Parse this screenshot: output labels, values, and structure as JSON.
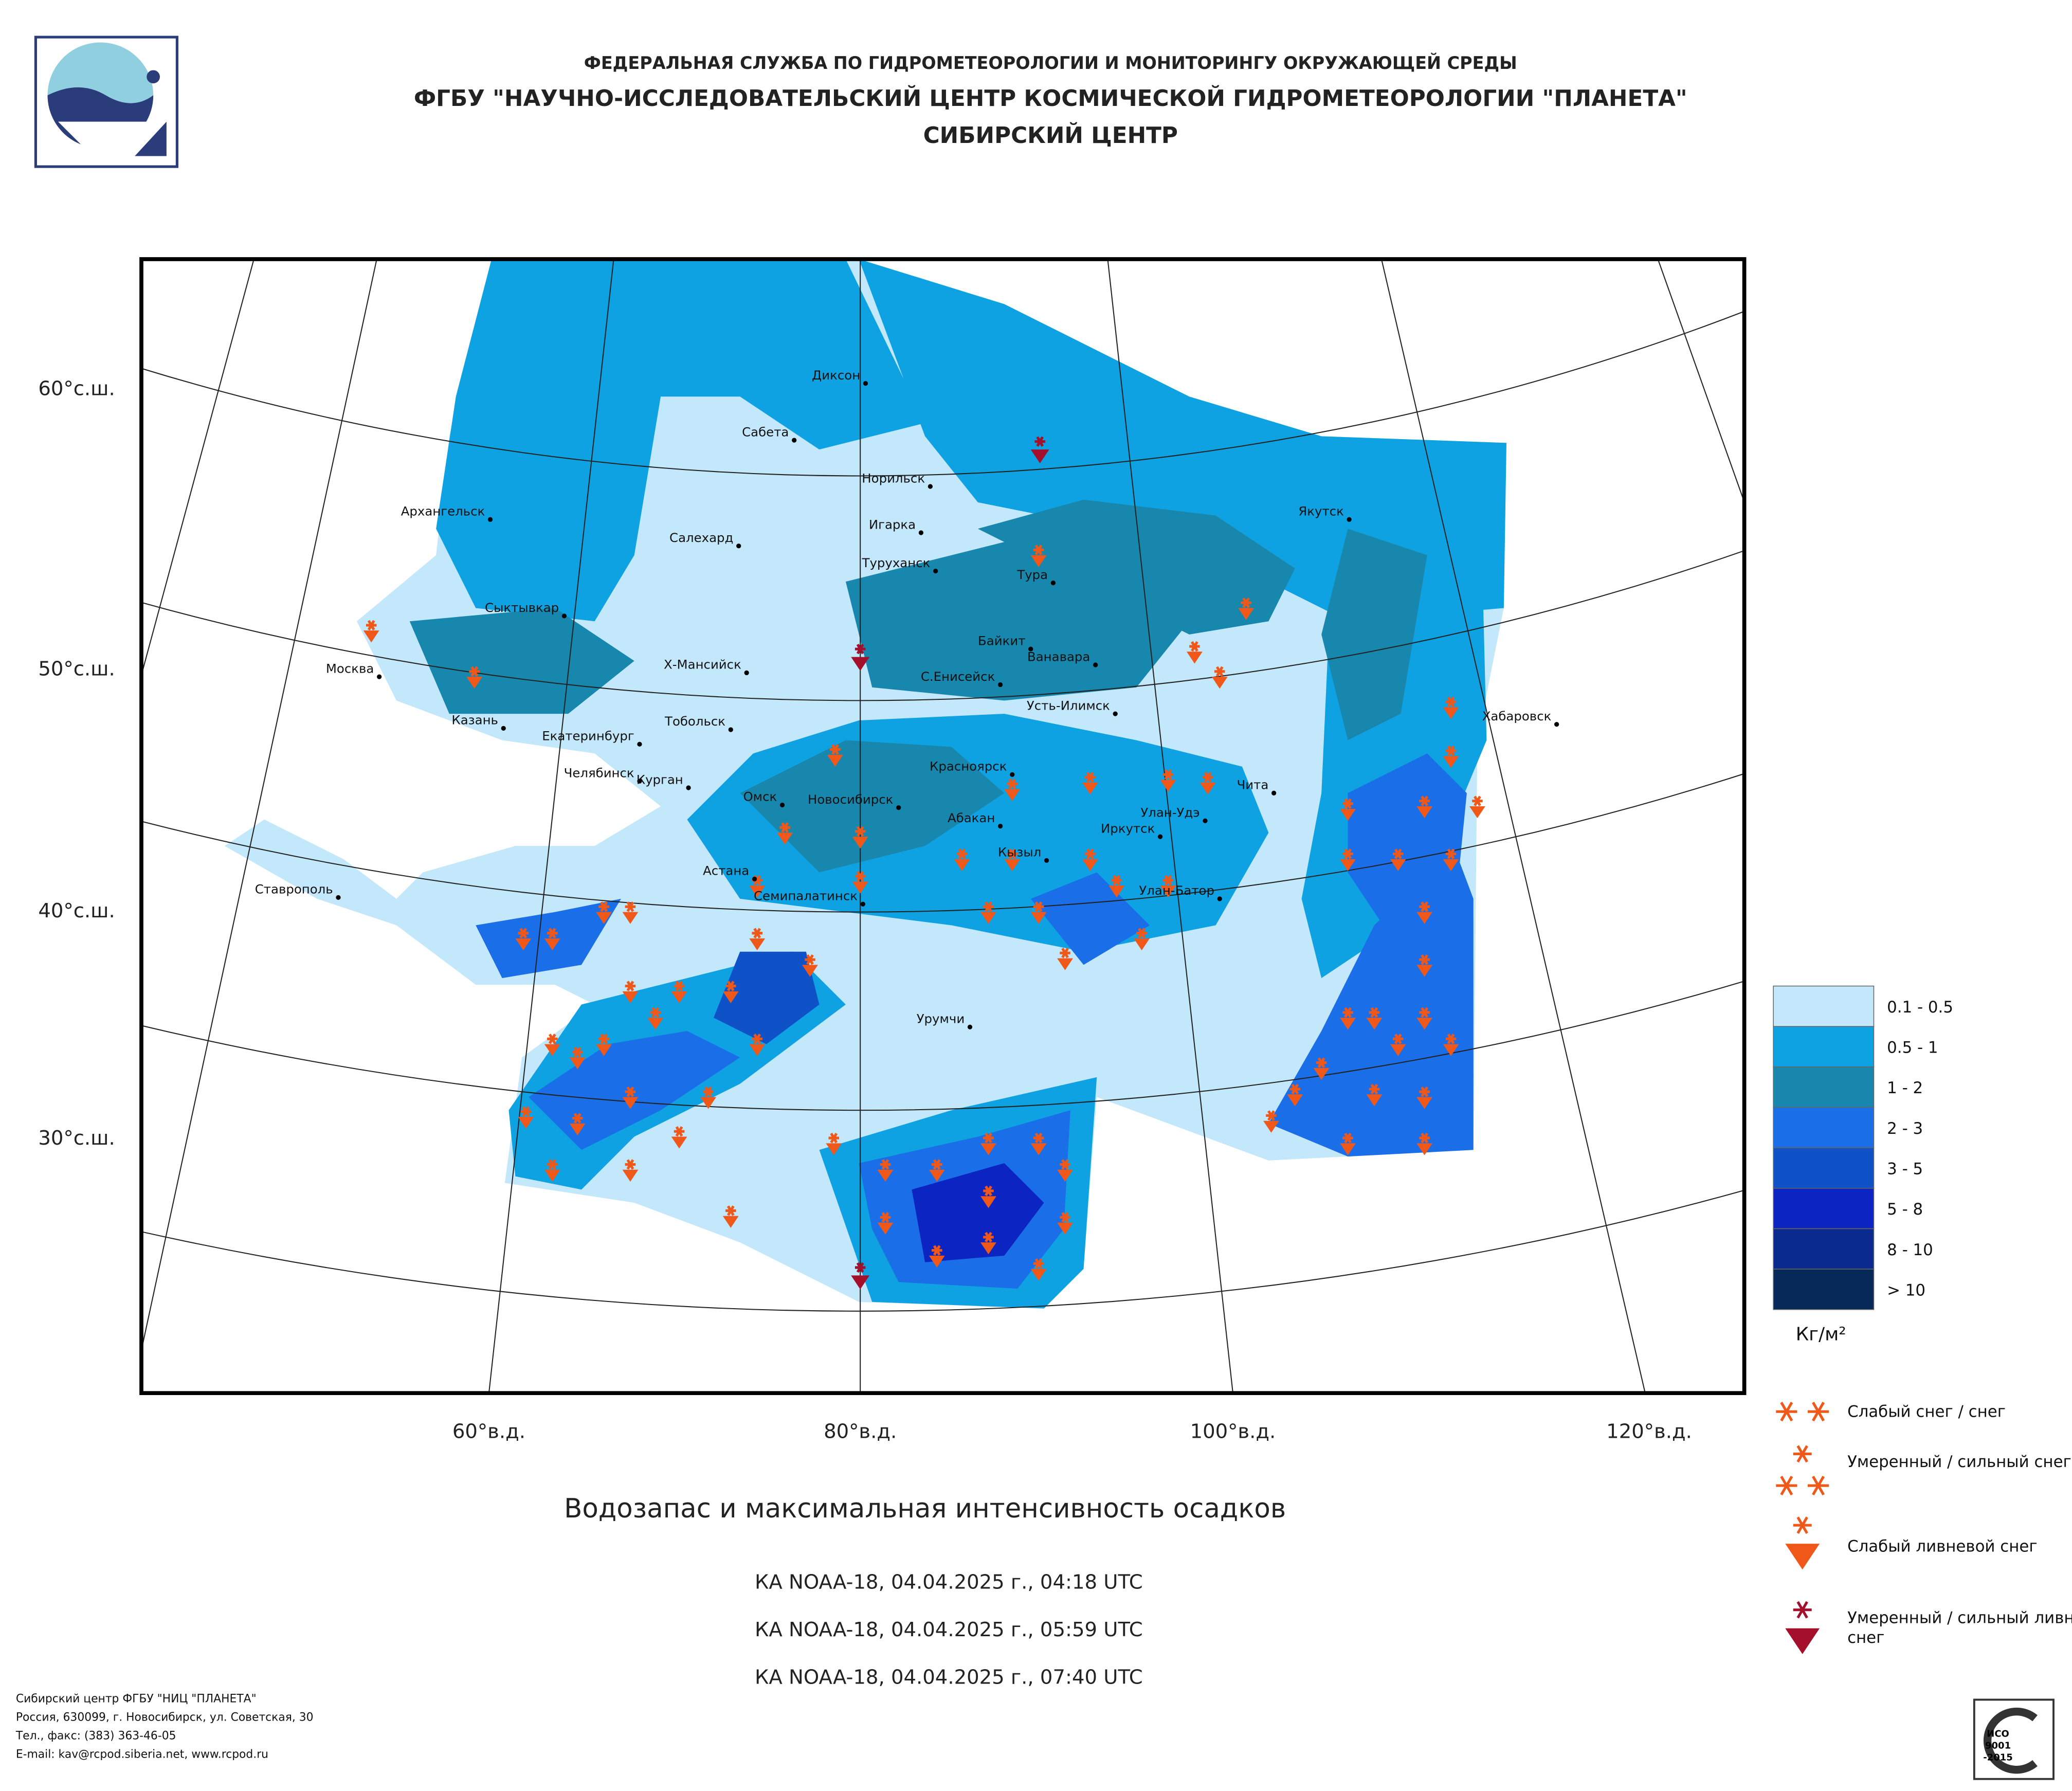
{
  "header": {
    "agency": "ФЕДЕРАЛЬНАЯ СЛУЖБА ПО ГИДРОМЕТЕОРОЛОГИИ И МОНИТОРИНГУ ОКРУЖАЮЩЕЙ СРЕДЫ",
    "institute": "ФГБУ \"НАУЧНО-ИССЛЕДОВАТЕЛЬСКИЙ ЦЕНТР КОСМИЧЕСКОЙ ГИДРОМЕТЕОРОЛОГИИ \"ПЛАНЕТА\"",
    "center": "СИБИРСКИЙ ЦЕНТР"
  },
  "map": {
    "lat_labels": [
      "60°с.ш.",
      "50°с.ш.",
      "40°с.ш.",
      "30°с.ш."
    ],
    "lon_labels": [
      "60°в.д.",
      "80°в.д.",
      "100°в.д.",
      "120°в.д."
    ],
    "cities": [
      "Диксон",
      "Сабета",
      "Норильск",
      "Игарка",
      "Туруханск",
      "Тура",
      "Архангельск",
      "Салехард",
      "Сыктывкар",
      "Якутск",
      "Байкит",
      "Ванавара",
      "Москва",
      "Х-Мансийск",
      "С.Енисейск",
      "Усть-Илимск",
      "Хабаровск",
      "Казань",
      "Тобольск",
      "Екатеринбург",
      "Челябинск",
      "Курган",
      "Красноярск",
      "Чита",
      "Омск",
      "Новосибирск",
      "Абакан",
      "Улан-Удэ",
      "Иркутск",
      "Кызыл",
      "Астана",
      "Семипалатинск",
      "Улан-Батор",
      "Ставрополь",
      "Урумчи"
    ]
  },
  "legend": {
    "classes": [
      {
        "label": "0.1 - 0.5",
        "color": "#c3e7fb"
      },
      {
        "label": "0.5 - 1",
        "color": "#0ea2e2"
      },
      {
        "label": "1 - 2",
        "color": "#1887ad"
      },
      {
        "label": "2 - 3",
        "color": "#1a6fe8"
      },
      {
        "label": "3 - 5",
        "color": "#0f52c8"
      },
      {
        "label": "5 - 8",
        "color": "#0c24c2"
      },
      {
        "label": "8 - 10",
        "color": "#0b2a8e"
      },
      {
        "label": "> 10",
        "color": "#06295a"
      }
    ],
    "unit": "Кг/м²"
  },
  "precip_legend": [
    "Слабый снег / снег",
    "Умеренный / сильный снег",
    "Слабый ливневой снег",
    "Умеренный / сильный ливневой снег"
  ],
  "title": "Водозапас и максимальная интенсивность осадков",
  "passes": [
    "КА NOAA-18, 04.04.2025 г., 04:18 UTC",
    "КА NOAA-18, 04.04.2025 г., 05:59 UTC",
    "КА NOAA-18, 04.04.2025 г., 07:40 UTC"
  ],
  "footer": [
    "Сибирский центр ФГБУ \"НИЦ \"ПЛАНЕТА\"",
    "Россия, 630099, г. Новосибирск, ул. Советская, 30",
    "Тел., факс: (383) 363-46-05",
    "E-mail: kav@rcpod.siberia.net, www.rcpod.ru"
  ],
  "iso": [
    "ИСО",
    "9001",
    "-2015"
  ]
}
